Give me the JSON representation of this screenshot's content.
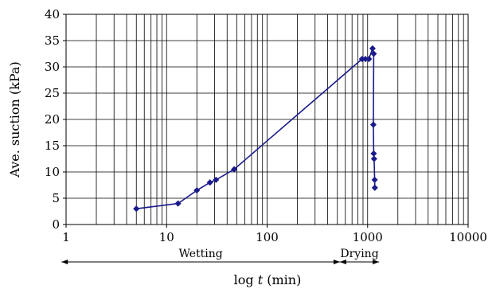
{
  "chart_data": {
    "type": "line",
    "x_scale": "log",
    "xlim": [
      1,
      10000
    ],
    "ylim": [
      0,
      40
    ],
    "x_ticks": [
      1,
      10,
      100,
      1000,
      10000
    ],
    "x_tick_labels": [
      "1",
      "10",
      "100",
      "1000",
      "10000"
    ],
    "y_ticks": [
      0,
      5,
      10,
      15,
      20,
      25,
      30,
      35,
      40
    ],
    "y_tick_labels": [
      "0",
      "5",
      "10",
      "15",
      "20",
      "25",
      "30",
      "35",
      "40"
    ],
    "ylabel": "Ave. suction (kPa)",
    "xlabel_prefix": "log ",
    "xlabel_var": "t",
    "xlabel_suffix": " (min)",
    "grid": true,
    "series": [
      {
        "color": "#1a1a8c",
        "marker": "diamond",
        "points": [
          {
            "x": 5,
            "y": 3
          },
          {
            "x": 13,
            "y": 4
          },
          {
            "x": 20,
            "y": 6.5
          },
          {
            "x": 27,
            "y": 8
          },
          {
            "x": 31,
            "y": 8.5
          },
          {
            "x": 47,
            "y": 10.5
          },
          {
            "x": 880,
            "y": 31.5
          },
          {
            "x": 950,
            "y": 31.5
          },
          {
            "x": 1030,
            "y": 31.5
          },
          {
            "x": 1120,
            "y": 33.5
          },
          {
            "x": 1150,
            "y": 32.5
          },
          {
            "x": 1140,
            "y": 19
          },
          {
            "x": 1150,
            "y": 13.5
          },
          {
            "x": 1160,
            "y": 12.5
          },
          {
            "x": 1175,
            "y": 8.5
          },
          {
            "x": 1180,
            "y": 7
          }
        ]
      }
    ],
    "annotations": [
      {
        "label": "Wetting",
        "from": 0.9,
        "to": 530,
        "arrows": "both"
      },
      {
        "label": "Drying",
        "from": 530,
        "to": 1300,
        "arrows": "both"
      }
    ]
  }
}
